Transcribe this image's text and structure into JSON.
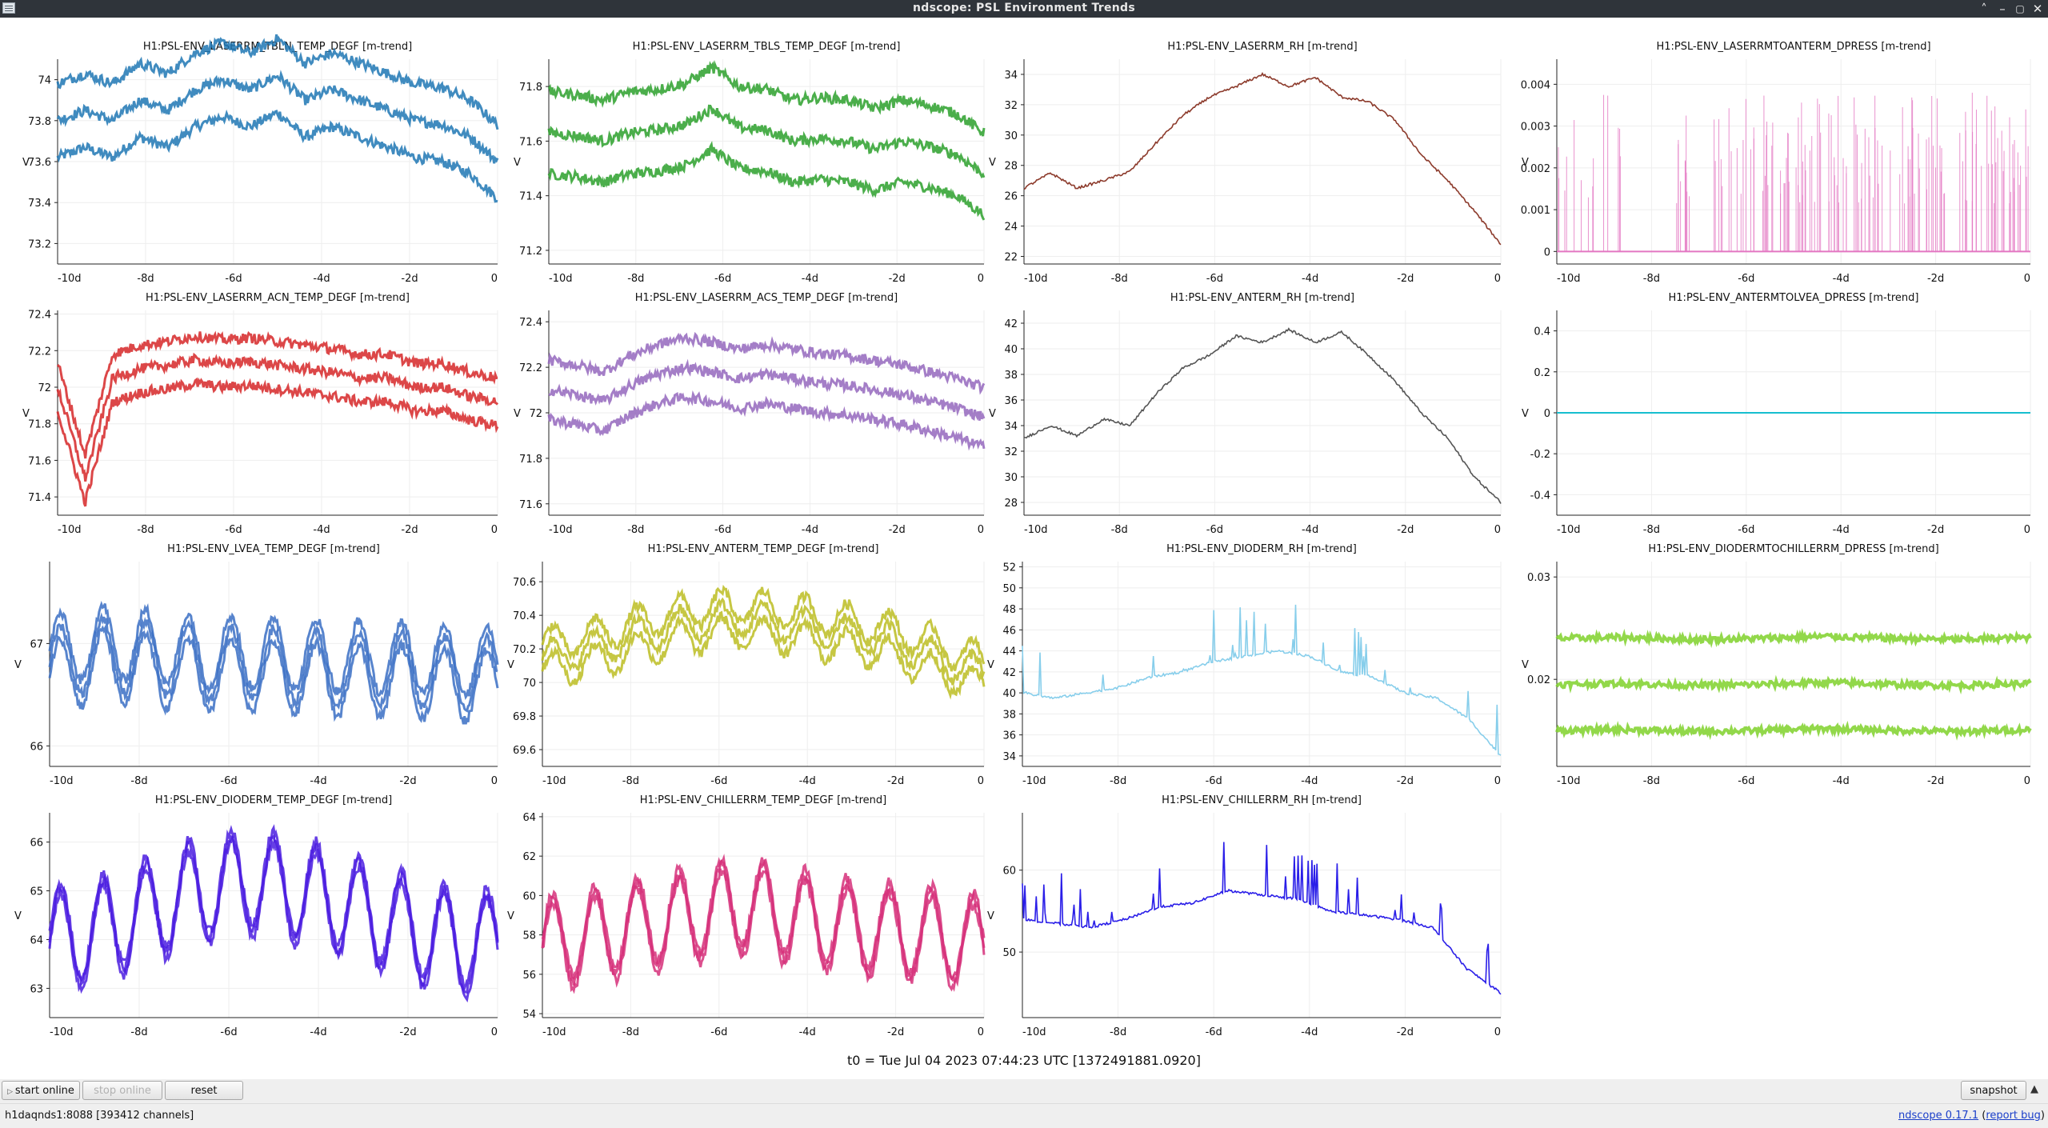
{
  "window": {
    "title": "ndscope: PSL Environment Trends"
  },
  "plots": [
    {
      "title": "H1:PSL-ENV_LASERRM_TBLN_TEMP_DEGF [m-trend]",
      "ylabel": "V",
      "color": "#1f77b4",
      "style": "band",
      "xticks": [
        "-10d",
        "-8d",
        "-6d",
        "-4d",
        "-2d",
        "0"
      ],
      "yticks": [
        "73.2",
        "73.4",
        "73.6",
        "73.8",
        "74"
      ],
      "ylim": [
        73.1,
        74.1
      ],
      "series_y": [
        73.8,
        73.85,
        73.8,
        73.9,
        73.85,
        73.95,
        74.0,
        73.95,
        74.02,
        73.9,
        73.95,
        73.9,
        73.85,
        73.8,
        73.78,
        73.72,
        73.6
      ],
      "band_offset": 0.18
    },
    {
      "title": "H1:PSL-ENV_LASERRM_TBLS_TEMP_DEGF [m-trend]",
      "ylabel": "V",
      "color": "#2ca02c",
      "style": "band",
      "xticks": [
        "-10d",
        "-8d",
        "-6d",
        "-4d",
        "-2d",
        "0"
      ],
      "yticks": [
        "71.2",
        "71.4",
        "71.6",
        "71.8"
      ],
      "ylim": [
        71.15,
        71.9
      ],
      "series_y": [
        71.63,
        71.62,
        71.6,
        71.63,
        71.64,
        71.66,
        71.72,
        71.65,
        71.64,
        71.6,
        71.61,
        71.6,
        71.57,
        71.6,
        71.58,
        71.55,
        71.48
      ],
      "band_offset": 0.15
    },
    {
      "title": "H1:PSL-ENV_LASERRM_RH [m-trend]",
      "ylabel": "V",
      "color": "#8c3a2b",
      "style": "line",
      "xticks": [
        "-10d",
        "-8d",
        "-6d",
        "-4d",
        "-2d",
        "0"
      ],
      "yticks": [
        "22",
        "24",
        "26",
        "28",
        "30",
        "32",
        "34"
      ],
      "ylim": [
        21.5,
        35
      ],
      "series_y": [
        26.5,
        27.5,
        26.5,
        27.0,
        27.6,
        29.5,
        31.3,
        32.5,
        33.2,
        34.0,
        33.2,
        33.8,
        32.5,
        32.2,
        31.0,
        28.7,
        27.0,
        25.0,
        22.8
      ]
    },
    {
      "title": "H1:PSL-ENV_LASERRMTOANTERM_DPRESS [m-trend]",
      "ylabel": "V",
      "color": "#e377c2",
      "style": "spikes",
      "xticks": [
        "-10d",
        "-8d",
        "-6d",
        "-4d",
        "-2d",
        "0"
      ],
      "yticks": [
        "0",
        "0.001",
        "0.002",
        "0.003",
        "0.004"
      ],
      "ylim": [
        -0.0003,
        0.0046
      ],
      "series_y": [
        0.0,
        0.0035,
        0.0,
        0.0032,
        0.0,
        0.0034,
        0.0,
        0.0036,
        0.0,
        0.0031,
        0.0,
        0.0035,
        0.0,
        0.0033,
        0.0,
        0.0038,
        0.0
      ]
    },
    {
      "title": "H1:PSL-ENV_LASERRM_ACN_TEMP_DEGF [m-trend]",
      "ylabel": "V",
      "color": "#d62728",
      "style": "band",
      "xticks": [
        "-10d",
        "-8d",
        "-6d",
        "-4d",
        "-2d",
        "0"
      ],
      "yticks": [
        "71.4",
        "71.6",
        "71.8",
        "72",
        "72.2",
        "72.4"
      ],
      "ylim": [
        71.3,
        72.42
      ],
      "series_y": [
        72.0,
        71.5,
        72.05,
        72.1,
        72.12,
        72.15,
        72.13,
        72.14,
        72.12,
        72.1,
        72.08,
        72.05,
        72.05,
        72.0,
        72.0,
        71.95,
        71.92
      ],
      "band_offset": 0.13
    },
    {
      "title": "H1:PSL-ENV_LASERRM_ACS_TEMP_DEGF [m-trend]",
      "ylabel": "V",
      "color": "#9467bd",
      "style": "band",
      "xticks": [
        "-10d",
        "-8d",
        "-6d",
        "-4d",
        "-2d",
        "0"
      ],
      "yticks": [
        "71.6",
        "71.8",
        "72",
        "72.2",
        "72.4"
      ],
      "ylim": [
        71.55,
        72.45
      ],
      "series_y": [
        72.1,
        72.08,
        72.05,
        72.12,
        72.17,
        72.2,
        72.18,
        72.15,
        72.17,
        72.15,
        72.13,
        72.12,
        72.1,
        72.08,
        72.05,
        72.02,
        71.98
      ],
      "band_offset": 0.13
    },
    {
      "title": "H1:PSL-ENV_ANTERM_RH [m-trend]",
      "ylabel": "V",
      "color": "#555555",
      "style": "line",
      "xticks": [
        "-10d",
        "-8d",
        "-6d",
        "-4d",
        "-2d",
        "0"
      ],
      "yticks": [
        "28",
        "30",
        "32",
        "34",
        "36",
        "38",
        "40",
        "42"
      ],
      "ylim": [
        27,
        43
      ],
      "series_y": [
        33.0,
        34.0,
        33.2,
        34.5,
        34.0,
        36.5,
        38.5,
        39.5,
        41.0,
        40.5,
        41.5,
        40.5,
        41.3,
        39.5,
        37.5,
        35.0,
        33.0,
        30.0,
        28.0
      ]
    },
    {
      "title": "H1:PSL-ENV_ANTERMTOLVEA_DPRESS [m-trend]",
      "ylabel": "V",
      "color": "#17becf",
      "style": "flat",
      "xticks": [
        "-10d",
        "-8d",
        "-6d",
        "-4d",
        "-2d",
        "0"
      ],
      "yticks": [
        "-0.4",
        "-0.2",
        "0",
        "0.2",
        "0.4"
      ],
      "ylim": [
        -0.5,
        0.5
      ],
      "series_y": [
        0,
        0
      ]
    },
    {
      "title": "H1:PSL-ENV_LVEA_TEMP_DEGF [m-trend]",
      "ylabel": "V",
      "color": "#3a6fc4",
      "style": "oscband",
      "xticks": [
        "-10d",
        "-8d",
        "-6d",
        "-4d",
        "-2d",
        "0"
      ],
      "yticks": [
        "66",
        "67"
      ],
      "ylim": [
        65.8,
        67.8
      ],
      "series_y": [
        66.8,
        66.9,
        66.85,
        66.8,
        66.8,
        66.78,
        66.75,
        66.75,
        66.72,
        66.7
      ],
      "band_offset": 0.12,
      "osc_amp": 0.35
    },
    {
      "title": "H1:PSL-ENV_ANTERM_TEMP_DEGF [m-trend]",
      "ylabel": "V",
      "color": "#bcbd22",
      "style": "oscband",
      "xticks": [
        "-10d",
        "-8d",
        "-6d",
        "-4d",
        "-2d",
        "0"
      ],
      "yticks": [
        "69.6",
        "69.8",
        "70",
        "70.2",
        "70.4",
        "70.6"
      ],
      "ylim": [
        69.5,
        70.72
      ],
      "series_y": [
        70.15,
        70.2,
        70.28,
        70.35,
        70.38,
        70.35,
        70.3,
        70.25,
        70.15,
        70.05
      ],
      "band_offset": 0.08,
      "osc_amp": 0.1
    },
    {
      "title": "H1:PSL-ENV_DIODERM_RH [m-trend]",
      "ylabel": "V",
      "color": "#87ceeb",
      "style": "spikyline",
      "xticks": [
        "-10d",
        "-8d",
        "-6d",
        "-4d",
        "-2d",
        "0"
      ],
      "yticks": [
        "34",
        "36",
        "38",
        "40",
        "42",
        "44",
        "46",
        "48",
        "50",
        "52"
      ],
      "ylim": [
        33,
        52.5
      ],
      "series_y": [
        40.0,
        39.5,
        40.0,
        40.5,
        41.5,
        42.0,
        43.0,
        43.5,
        44.0,
        43.5,
        42.0,
        41.5,
        40.0,
        39.5,
        37.5,
        34.0
      ]
    },
    {
      "title": "H1:PSL-ENV_DIODERMTOCHILLERRM_DPRESS [m-trend]",
      "ylabel": "V",
      "color": "#7fd12a",
      "style": "tripleflat",
      "xticks": [
        "-10d",
        "-8d",
        "-6d",
        "-4d",
        "-2d",
        "0"
      ],
      "yticks": [
        "0.02",
        "0.03"
      ],
      "ylim": [
        0.0115,
        0.0315
      ],
      "series_y": [
        0.0195,
        0.0196,
        0.0194,
        0.0195,
        0.0197,
        0.0195,
        0.0194,
        0.0196
      ],
      "band_offset": 0.0045
    },
    {
      "title": "H1:PSL-ENV_DIODERM_TEMP_DEGF [m-trend]",
      "ylabel": "V",
      "color": "#4b1de0",
      "style": "oscband",
      "xticks": [
        "-10d",
        "-8d",
        "-6d",
        "-4d",
        "-2d",
        "0"
      ],
      "yticks": [
        "63",
        "64",
        "65",
        "66"
      ],
      "ylim": [
        62.4,
        66.6
      ],
      "series_y": [
        64.0,
        64.2,
        64.6,
        65.0,
        65.2,
        65.0,
        64.7,
        64.3,
        64.0,
        63.9
      ],
      "band_offset": 0.12,
      "osc_amp": 1.0
    },
    {
      "title": "H1:PSL-ENV_CHILLERRM_TEMP_DEGF [m-trend]",
      "ylabel": "V",
      "color": "#d6307a",
      "style": "oscband",
      "xticks": [
        "-10d",
        "-8d",
        "-6d",
        "-4d",
        "-2d",
        "0"
      ],
      "yticks": [
        "54",
        "56",
        "58",
        "60",
        "62",
        "64"
      ],
      "ylim": [
        53.8,
        64.2
      ],
      "series_y": [
        57.5,
        58.0,
        58.5,
        59.0,
        59.5,
        59.0,
        58.5,
        58.2,
        58.0,
        57.5
      ],
      "band_offset": 0.3,
      "osc_amp": 2.2
    },
    {
      "title": "H1:PSL-ENV_CHILLERRM_RH [m-trend]",
      "ylabel": "V",
      "color": "#2a1ee8",
      "style": "spikyline",
      "xticks": [
        "-10d",
        "-8d",
        "-6d",
        "-4d",
        "-2d",
        "0"
      ],
      "yticks": [
        "50",
        "60"
      ],
      "ylim": [
        42,
        67
      ],
      "series_y": [
        54.0,
        53.5,
        53.0,
        54.0,
        55.5,
        56.0,
        57.5,
        57.0,
        56.5,
        55.0,
        54.5,
        54.0,
        53.0,
        48.0,
        45.0
      ]
    }
  ],
  "t0": "t0 = Tue Jul 04 2023 07:44:23 UTC [1372491881.0920]",
  "buttons": {
    "start_online": "start online",
    "stop_online": "stop online",
    "reset": "reset",
    "snapshot": "snapshot"
  },
  "status": {
    "server": "h1daqnds1:8088  [393412 channels]",
    "version": "ndscope 0.17.1",
    "report_bug": "report bug"
  }
}
